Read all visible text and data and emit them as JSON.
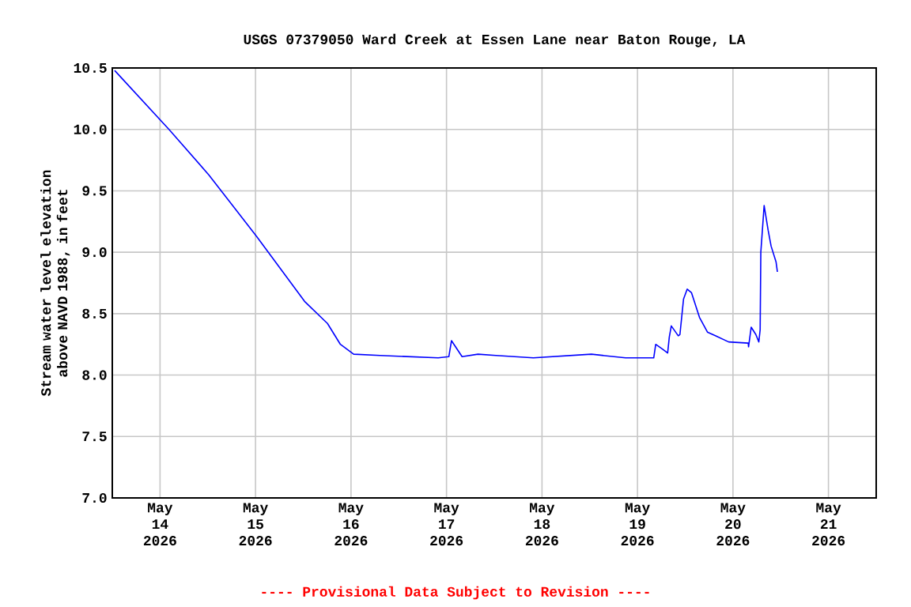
{
  "chart_data": {
    "type": "line",
    "title": "USGS 07379050 Ward Creek at Essen Lane near Baton Rouge, LA",
    "ylabel": "Stream water level elevation above NAVD 1988, in feet",
    "annotations": [
      "---- Provisional Data Subject to Revision ----"
    ],
    "x": [
      "2026-05-13T12:35",
      "2026-05-14T02:15",
      "2026-05-14T12:15",
      "2026-05-15T00:15",
      "2026-05-15T12:20",
      "2026-05-15T18:05",
      "2026-05-15T21:20",
      "2026-05-16T00:40",
      "2026-05-16T07:20",
      "2026-05-16T21:55",
      "2026-05-17T00:35",
      "2026-05-17T01:15",
      "2026-05-17T03:55",
      "2026-05-17T07:55",
      "2026-05-17T12:25",
      "2026-05-17T21:50",
      "2026-05-18T12:25",
      "2026-05-18T21:00",
      "2026-05-19T04:05",
      "2026-05-19T04:35",
      "2026-05-19T06:20",
      "2026-05-19T07:35",
      "2026-05-19T08:00",
      "2026-05-19T08:30",
      "2026-05-19T10:15",
      "2026-05-19T10:40",
      "2026-05-19T11:35",
      "2026-05-19T12:30",
      "2026-05-19T13:35",
      "2026-05-19T15:35",
      "2026-05-19T17:35",
      "2026-05-19T19:35",
      "2026-05-19T22:55",
      "2026-05-20T03:50",
      "2026-05-20T03:55",
      "2026-05-20T04:35",
      "2026-05-20T05:45",
      "2026-05-20T06:30",
      "2026-05-20T06:50",
      "2026-05-20T07:00",
      "2026-05-20T07:50",
      "2026-05-20T08:50",
      "2026-05-20T09:35",
      "2026-05-20T10:50",
      "2026-05-20T11:10"
    ],
    "series": [
      {
        "color": "#0000ff",
        "values": [
          10.48,
          10.0,
          9.63,
          9.13,
          8.6,
          8.42,
          8.25,
          8.17,
          8.16,
          8.14,
          8.15,
          8.28,
          8.15,
          8.17,
          8.16,
          8.14,
          8.17,
          8.14,
          8.14,
          8.25,
          8.21,
          8.18,
          8.31,
          8.4,
          8.32,
          8.33,
          8.62,
          8.7,
          8.67,
          8.47,
          8.35,
          8.32,
          8.27,
          8.26,
          8.23,
          8.39,
          8.33,
          8.27,
          8.37,
          9.0,
          9.38,
          9.18,
          9.05,
          8.92,
          8.84
        ]
      }
    ],
    "xlim": [
      "2026-05-13T12:00",
      "2026-05-21T12:00"
    ],
    "xticks": [
      {
        "value": "2026-05-14",
        "label": "May 14 2026"
      },
      {
        "value": "2026-05-15",
        "label": "May 15 2026"
      },
      {
        "value": "2026-05-16",
        "label": "May 16 2026"
      },
      {
        "value": "2026-05-17",
        "label": "May 17 2026"
      },
      {
        "value": "2026-05-18",
        "label": "May 18 2026"
      },
      {
        "value": "2026-05-19",
        "label": "May 19 2026"
      },
      {
        "value": "2026-05-20",
        "label": "May 20 2026"
      },
      {
        "value": "2026-05-21",
        "label": "May 21 2026"
      }
    ],
    "ylim": [
      7.0,
      10.5
    ],
    "yticks": [
      {
        "value": 7.0,
        "label": "7.0"
      },
      {
        "value": 7.5,
        "label": "7.5"
      },
      {
        "value": 8.0,
        "label": "8.0"
      },
      {
        "value": 8.5,
        "label": "8.5"
      },
      {
        "value": 9.0,
        "label": "9.0"
      },
      {
        "value": 9.5,
        "label": "9.5"
      },
      {
        "value": 10.0,
        "label": "10.0"
      },
      {
        "value": 10.5,
        "label": "10.5"
      }
    ],
    "grid": true,
    "marker": "none",
    "line_style": "solid"
  }
}
